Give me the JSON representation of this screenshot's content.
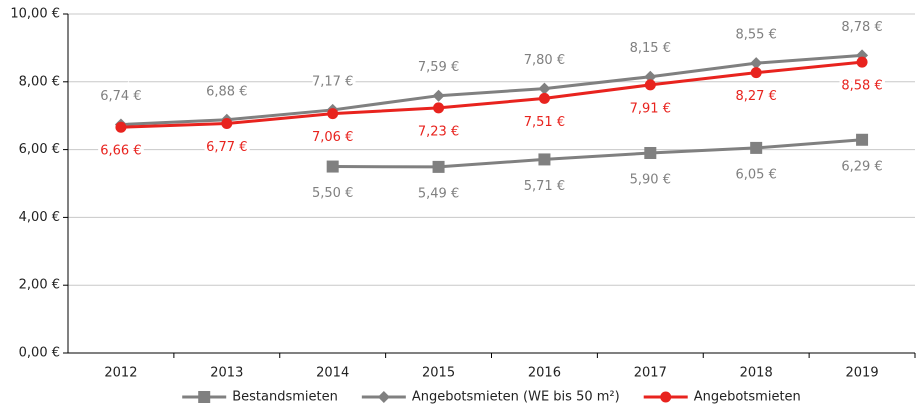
{
  "chart_data": {
    "type": "line",
    "categories": [
      "2012",
      "2013",
      "2014",
      "2015",
      "2016",
      "2017",
      "2018",
      "2019"
    ],
    "series": [
      {
        "name": "Bestandsmieten",
        "color": "#808080",
        "marker": "square",
        "values": [
          null,
          null,
          5.5,
          5.49,
          5.71,
          5.9,
          6.05,
          6.29
        ],
        "value_labels": [
          null,
          null,
          "5,50 €",
          "5,49 €",
          "5,71 €",
          "5,90 €",
          "6,05 €",
          "6,29 €"
        ]
      },
      {
        "name": "Angebotsmieten (WE bis 50 m²)",
        "color": "#808080",
        "marker": "diamond",
        "values": [
          6.74,
          6.88,
          7.17,
          7.59,
          7.8,
          8.15,
          8.55,
          8.78
        ],
        "value_labels": [
          "6,74 €",
          "6,88 €",
          "7,17 €",
          "7,59 €",
          "7,80 €",
          "8,15 €",
          "8,55 €",
          "8,78 €"
        ]
      },
      {
        "name": "Angebotsmieten",
        "color": "#e8231e",
        "marker": "circle",
        "values": [
          6.66,
          6.77,
          7.06,
          7.23,
          7.51,
          7.91,
          8.27,
          8.58
        ],
        "value_labels": [
          "6,66 €",
          "6,77 €",
          "7,06 €",
          "7,23 €",
          "7,51 €",
          "7,91 €",
          "8,27 €",
          "8,58 €"
        ]
      }
    ],
    "ylim": [
      0,
      10
    ],
    "yticks": [
      {
        "value": 0,
        "label": "0,00 €"
      },
      {
        "value": 2,
        "label": "2,00 €"
      },
      {
        "value": 4,
        "label": "4,00 €"
      },
      {
        "value": 6,
        "label": "6,00 €"
      },
      {
        "value": 8,
        "label": "8,00 €"
      },
      {
        "value": 10,
        "label": "10,00 €"
      }
    ],
    "grid": true,
    "legend": "bottom"
  }
}
